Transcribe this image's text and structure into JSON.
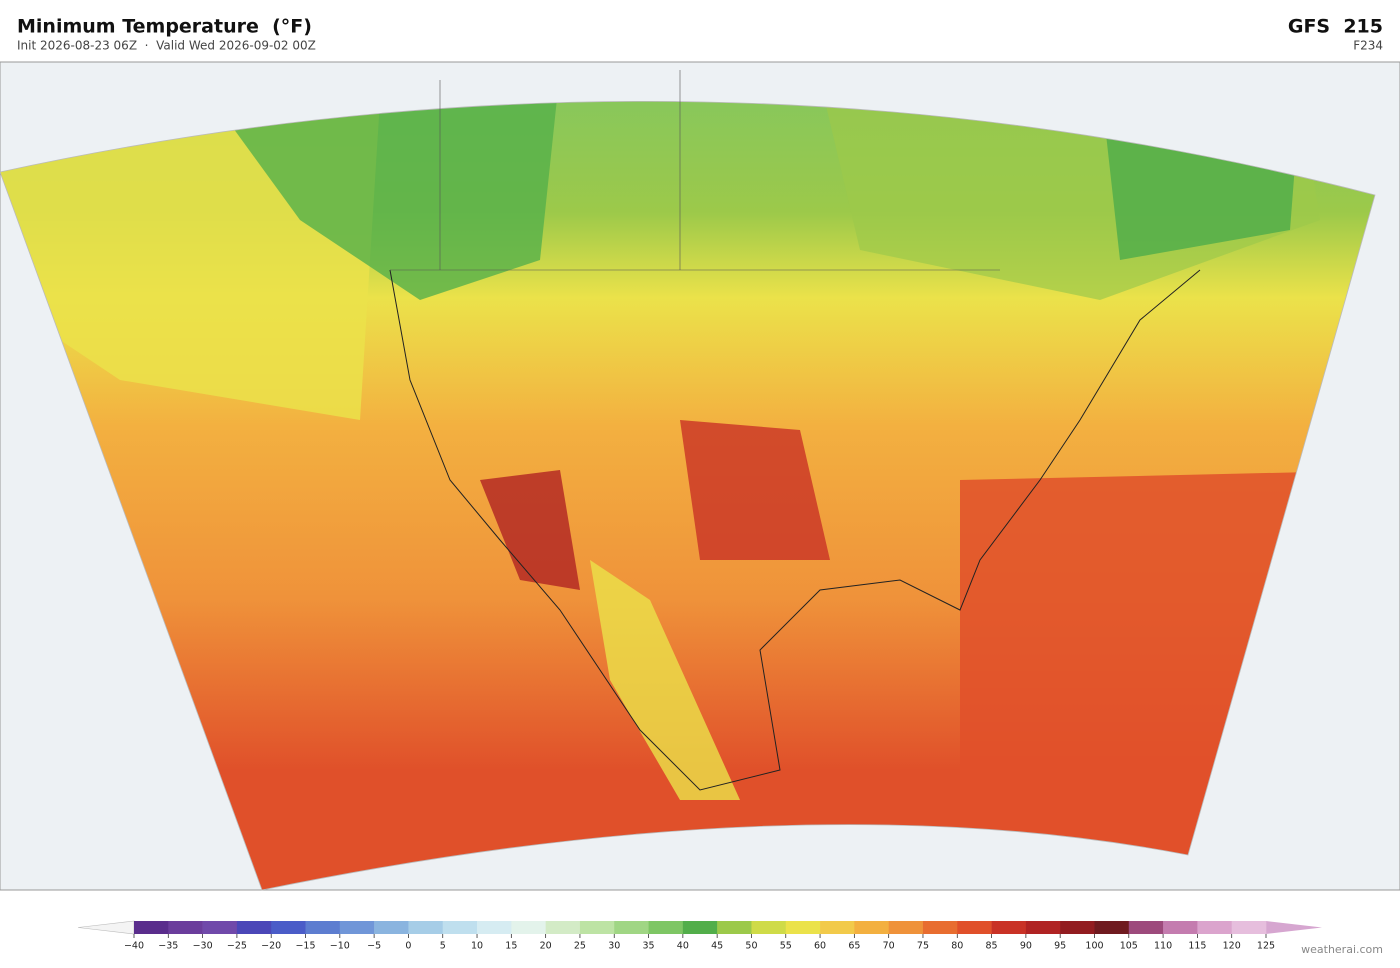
{
  "header": {
    "title": "Minimum Temperature  (°F)",
    "subtitle": "Init 2026-08-23 06Z  ·  Valid Wed 2026-09-02 00Z",
    "model": "GFS  215",
    "forecast_hour": "F234"
  },
  "colorbar": {
    "range": [
      -40,
      125
    ],
    "ticks": [
      {
        "value": -40,
        "label": "−40"
      },
      {
        "value": -35,
        "label": "−35"
      },
      {
        "value": -30,
        "label": "−30"
      },
      {
        "value": -25,
        "label": "−25"
      },
      {
        "value": -20,
        "label": "−20"
      },
      {
        "value": -15,
        "label": "−15"
      },
      {
        "value": -10,
        "label": "−10"
      },
      {
        "value": -5,
        "label": "−5"
      },
      0,
      5,
      10,
      15,
      20,
      25,
      30,
      35,
      40,
      45,
      50,
      55,
      60,
      65,
      70,
      75,
      80,
      85,
      90,
      95,
      100,
      105,
      110,
      115,
      120,
      125
    ],
    "colors": [
      "#5a2d8c",
      "#6b3d9c",
      "#7049aa",
      "#4b47b8",
      "#4a5cc8",
      "#5d7dd0",
      "#7096d8",
      "#8ab4df",
      "#a6cde7",
      "#bfdfee",
      "#d6ecf2",
      "#e3f3eb",
      "#d3ebc6",
      "#bde3a4",
      "#a0d684",
      "#7ec664",
      "#52ae4a",
      "#9cc94a",
      "#cfdb48",
      "#ebe24a",
      "#f2ca4a",
      "#f3b040",
      "#ef923a",
      "#e86d30",
      "#e0502a",
      "#c93226",
      "#b02323",
      "#921c20",
      "#6f1a1f",
      "#9d4a7c",
      "#c47caf",
      "#dba4cd",
      "#e6bedd"
    ],
    "under_color": "#f4f4f4",
    "over_color": "#d6a6d0"
  },
  "credit": "weatherai.com"
}
